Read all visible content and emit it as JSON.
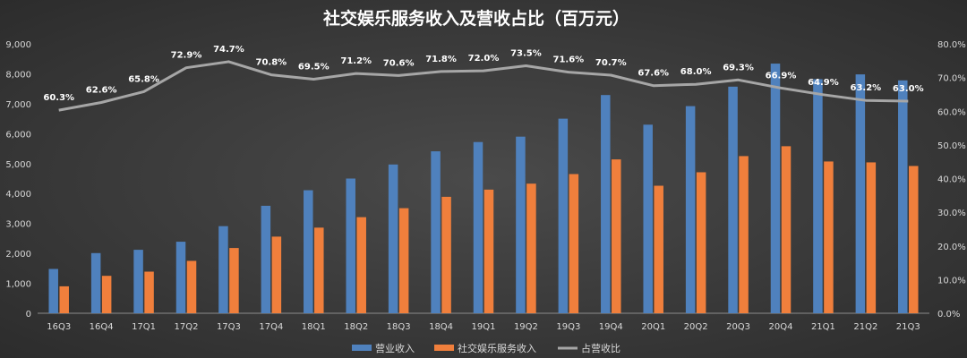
{
  "chart_data": {
    "type": "bar",
    "title": "社交娱乐服务收入及营收占比（百万元）",
    "categories": [
      "16Q3",
      "16Q4",
      "17Q1",
      "17Q2",
      "17Q3",
      "17Q4",
      "18Q1",
      "18Q2",
      "18Q3",
      "18Q4",
      "19Q1",
      "19Q2",
      "19Q3",
      "19Q4",
      "20Q1",
      "20Q2",
      "20Q3",
      "20Q4",
      "21Q1",
      "21Q2",
      "21Q3"
    ],
    "series": [
      {
        "name": "营业收入",
        "type": "bar",
        "axis": "left",
        "color": "#4f81bd",
        "values": [
          1480,
          2010,
          2120,
          2390,
          2910,
          3590,
          4110,
          4500,
          4970,
          5410,
          5720,
          5900,
          6500,
          7290,
          6300,
          6920,
          7570,
          8340,
          7820,
          7980,
          7780
        ]
      },
      {
        "name": "社交娱乐服务收入",
        "type": "bar",
        "axis": "left",
        "color": "#f07f3c",
        "values": [
          900,
          1250,
          1390,
          1750,
          2180,
          2560,
          2860,
          3210,
          3510,
          3890,
          4130,
          4330,
          4650,
          5140,
          4260,
          4710,
          5250,
          5580,
          5070,
          5040,
          4920
        ]
      },
      {
        "name": "占营收比",
        "type": "line",
        "axis": "right",
        "color": "#a6a6a6",
        "values": [
          60.3,
          62.6,
          65.8,
          72.9,
          74.7,
          70.8,
          69.5,
          71.2,
          70.6,
          71.8,
          72.0,
          73.5,
          71.6,
          70.7,
          67.6,
          68.0,
          69.3,
          66.9,
          64.9,
          63.2,
          63.0
        ],
        "labels": [
          "60.3%",
          "62.6%",
          "65.8%",
          "72.9%",
          "74.7%",
          "70.8%",
          "69.5%",
          "71.2%",
          "70.6%",
          "71.8%",
          "72.0%",
          "73.5%",
          "71.6%",
          "70.7%",
          "67.6%",
          "68.0%",
          "69.3%",
          "66.9%",
          "64.9%",
          "63.2%",
          "63.0%"
        ]
      }
    ],
    "ylim": [
      0,
      9000
    ],
    "yticks": [
      "0",
      "1,000",
      "2,000",
      "3,000",
      "4,000",
      "5,000",
      "6,000",
      "7,000",
      "8,000",
      "9,000"
    ],
    "y2lim": [
      0,
      80
    ],
    "y2ticks": [
      "0.0%",
      "10.0%",
      "20.0%",
      "30.0%",
      "40.0%",
      "50.0%",
      "60.0%",
      "70.0%",
      "80.0%"
    ],
    "grid": false,
    "legend_position": "bottom"
  }
}
